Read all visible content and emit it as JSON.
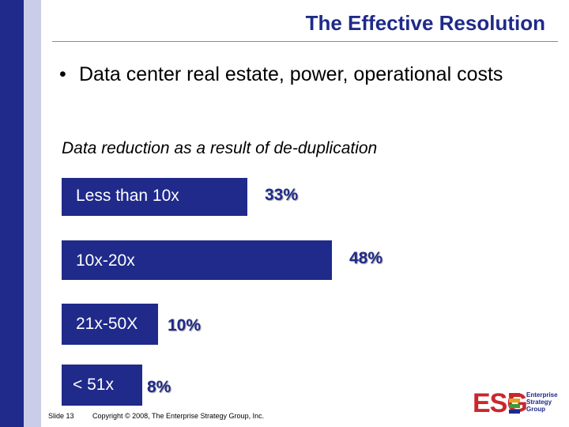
{
  "slide": {
    "title": "The Effective Resolution",
    "bullet_marker": "•",
    "bullet_text": "Data center real estate, power, operational costs",
    "slide_number": "Slide 13",
    "copyright": "Copyright © 2008, The Enterprise Strategy Group, Inc."
  },
  "logo": {
    "mark": "ESG",
    "line1": "Enterprise",
    "line2": "Strategy",
    "line3": "Group"
  },
  "colors": {
    "accent": "#1f2a8a",
    "brand_red": "#c8282d"
  },
  "chart_data": {
    "type": "bar",
    "orientation": "horizontal",
    "title": "Data reduction as a result of de-duplication",
    "categories": [
      "Less than 10x",
      "10x-20x",
      "21x-50X",
      "< 51x"
    ],
    "values": [
      33,
      48,
      10,
      8
    ],
    "value_labels": [
      "33%",
      "48%",
      "10%",
      "8%"
    ],
    "unit": "%",
    "xlim": [
      0,
      48
    ],
    "grid": false,
    "legend": "none"
  }
}
